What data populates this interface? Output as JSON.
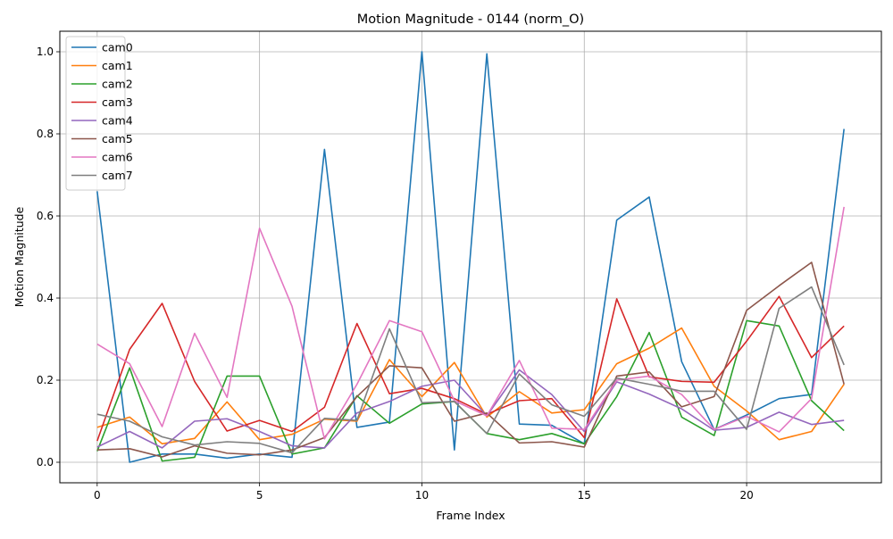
{
  "chart_data": {
    "type": "line",
    "title": "Motion Magnitude - 0144 (norm_O)",
    "xlabel": "Frame Index",
    "ylabel": "Motion Magnitude",
    "xlim": [
      -1.15,
      24.15
    ],
    "ylim": [
      -0.05,
      1.05
    ],
    "xticks": [
      0,
      5,
      10,
      15,
      20
    ],
    "yticks": [
      0.0,
      0.2,
      0.4,
      0.6,
      0.8,
      1.0
    ],
    "xtick_labels": [
      "0",
      "5",
      "10",
      "15",
      "20"
    ],
    "ytick_labels": [
      "0.0",
      "0.2",
      "0.4",
      "0.6",
      "0.8",
      "1.0"
    ],
    "grid": true,
    "legend_position": "upper-left",
    "x": [
      0,
      1,
      2,
      3,
      4,
      5,
      6,
      7,
      8,
      9,
      10,
      11,
      12,
      13,
      14,
      15,
      16,
      17,
      18,
      19,
      20,
      21,
      22,
      23
    ],
    "series": [
      {
        "name": "cam0",
        "color": "#1f77b4",
        "values": [
          0.66,
          0.0,
          0.02,
          0.02,
          0.01,
          0.02,
          0.012,
          0.762,
          0.085,
          0.098,
          1.0,
          0.03,
          0.995,
          0.093,
          0.09,
          0.045,
          0.59,
          0.646,
          0.245,
          0.08,
          0.115,
          0.155,
          0.165,
          0.812
        ]
      },
      {
        "name": "cam1",
        "color": "#ff7f0e",
        "values": [
          0.085,
          0.11,
          0.045,
          0.058,
          0.147,
          0.055,
          0.068,
          0.105,
          0.1,
          0.25,
          0.16,
          0.243,
          0.11,
          0.172,
          0.12,
          0.128,
          0.24,
          0.278,
          0.327,
          0.185,
          0.125,
          0.055,
          0.075,
          0.19
        ]
      },
      {
        "name": "cam2",
        "color": "#2ca02c",
        "values": [
          0.027,
          0.23,
          0.003,
          0.012,
          0.21,
          0.21,
          0.02,
          0.035,
          0.162,
          0.095,
          0.142,
          0.148,
          0.07,
          0.055,
          0.07,
          0.045,
          0.16,
          0.316,
          0.11,
          0.065,
          0.345,
          0.332,
          0.15,
          0.077
        ]
      },
      {
        "name": "cam3",
        "color": "#d62728",
        "values": [
          0.052,
          0.275,
          0.387,
          0.197,
          0.076,
          0.102,
          0.075,
          0.134,
          0.338,
          0.167,
          0.18,
          0.155,
          0.117,
          0.15,
          0.155,
          0.06,
          0.398,
          0.208,
          0.197,
          0.195,
          0.295,
          0.404,
          0.255,
          0.332
        ]
      },
      {
        "name": "cam4",
        "color": "#9467bd",
        "values": [
          0.037,
          0.075,
          0.035,
          0.1,
          0.106,
          0.075,
          0.04,
          0.035,
          0.12,
          0.148,
          0.185,
          0.2,
          0.113,
          0.225,
          0.165,
          0.075,
          0.196,
          0.166,
          0.13,
          0.078,
          0.085,
          0.122,
          0.092,
          0.102
        ]
      },
      {
        "name": "cam5",
        "color": "#8c564b",
        "values": [
          0.03,
          0.033,
          0.013,
          0.04,
          0.022,
          0.018,
          0.03,
          0.06,
          0.16,
          0.235,
          0.23,
          0.1,
          0.12,
          0.047,
          0.05,
          0.037,
          0.21,
          0.22,
          0.135,
          0.16,
          0.37,
          0.43,
          0.487,
          0.19
        ]
      },
      {
        "name": "cam6",
        "color": "#e377c2",
        "values": [
          0.288,
          0.24,
          0.087,
          0.314,
          0.158,
          0.57,
          0.38,
          0.057,
          0.19,
          0.345,
          0.318,
          0.15,
          0.113,
          0.248,
          0.083,
          0.08,
          0.2,
          0.21,
          0.165,
          0.08,
          0.112,
          0.074,
          0.155,
          0.622
        ]
      },
      {
        "name": "cam7",
        "color": "#7f7f7f",
        "values": [
          0.117,
          0.1,
          0.062,
          0.042,
          0.05,
          0.046,
          0.023,
          0.107,
          0.102,
          0.325,
          0.145,
          0.148,
          0.07,
          0.215,
          0.14,
          0.112,
          0.205,
          0.19,
          0.173,
          0.173,
          0.08,
          0.375,
          0.427,
          0.237
        ]
      }
    ]
  }
}
